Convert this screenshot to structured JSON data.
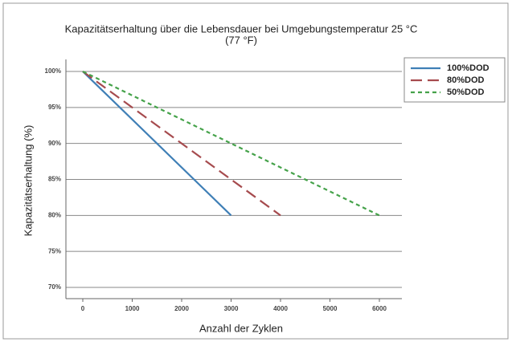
{
  "chart_data": {
    "type": "line",
    "title": "Kapazitätserhaltung über die Lebensdauer bei Umgebungstemperatur 25 °C",
    "subtitle": "(77 °F)",
    "x_label": "Anzahl der Zyklen",
    "y_label": "Kapazitätserhaltung (%)",
    "xlim": [
      0,
      6000
    ],
    "xticks": [
      0,
      1000,
      2000,
      3000,
      4000,
      5000,
      6000
    ],
    "ylim": [
      70,
      100
    ],
    "yticks": [
      {
        "value": 70,
        "label": "70%"
      },
      {
        "value": 75,
        "label": "75%"
      },
      {
        "value": 80,
        "label": "80%"
      },
      {
        "value": 85,
        "label": "85%"
      },
      {
        "value": 90,
        "label": "90%"
      },
      {
        "value": 95,
        "label": "95%"
      },
      {
        "value": 100,
        "label": "100%"
      }
    ],
    "grid": true,
    "legend": "right",
    "series": [
      {
        "name": "100%DOD",
        "color": "#3f7fb6",
        "dash": "solid",
        "x": [
          0,
          3000
        ],
        "values": [
          100,
          80
        ]
      },
      {
        "name": "80%DOD",
        "color": "#a64b4e",
        "dash": "dashed",
        "x": [
          0,
          4000
        ],
        "values": [
          100,
          80
        ]
      },
      {
        "name": "50%DOD",
        "color": "#45a24a",
        "dash": "dotted",
        "x": [
          0,
          6000
        ],
        "values": [
          100,
          80
        ]
      }
    ]
  }
}
